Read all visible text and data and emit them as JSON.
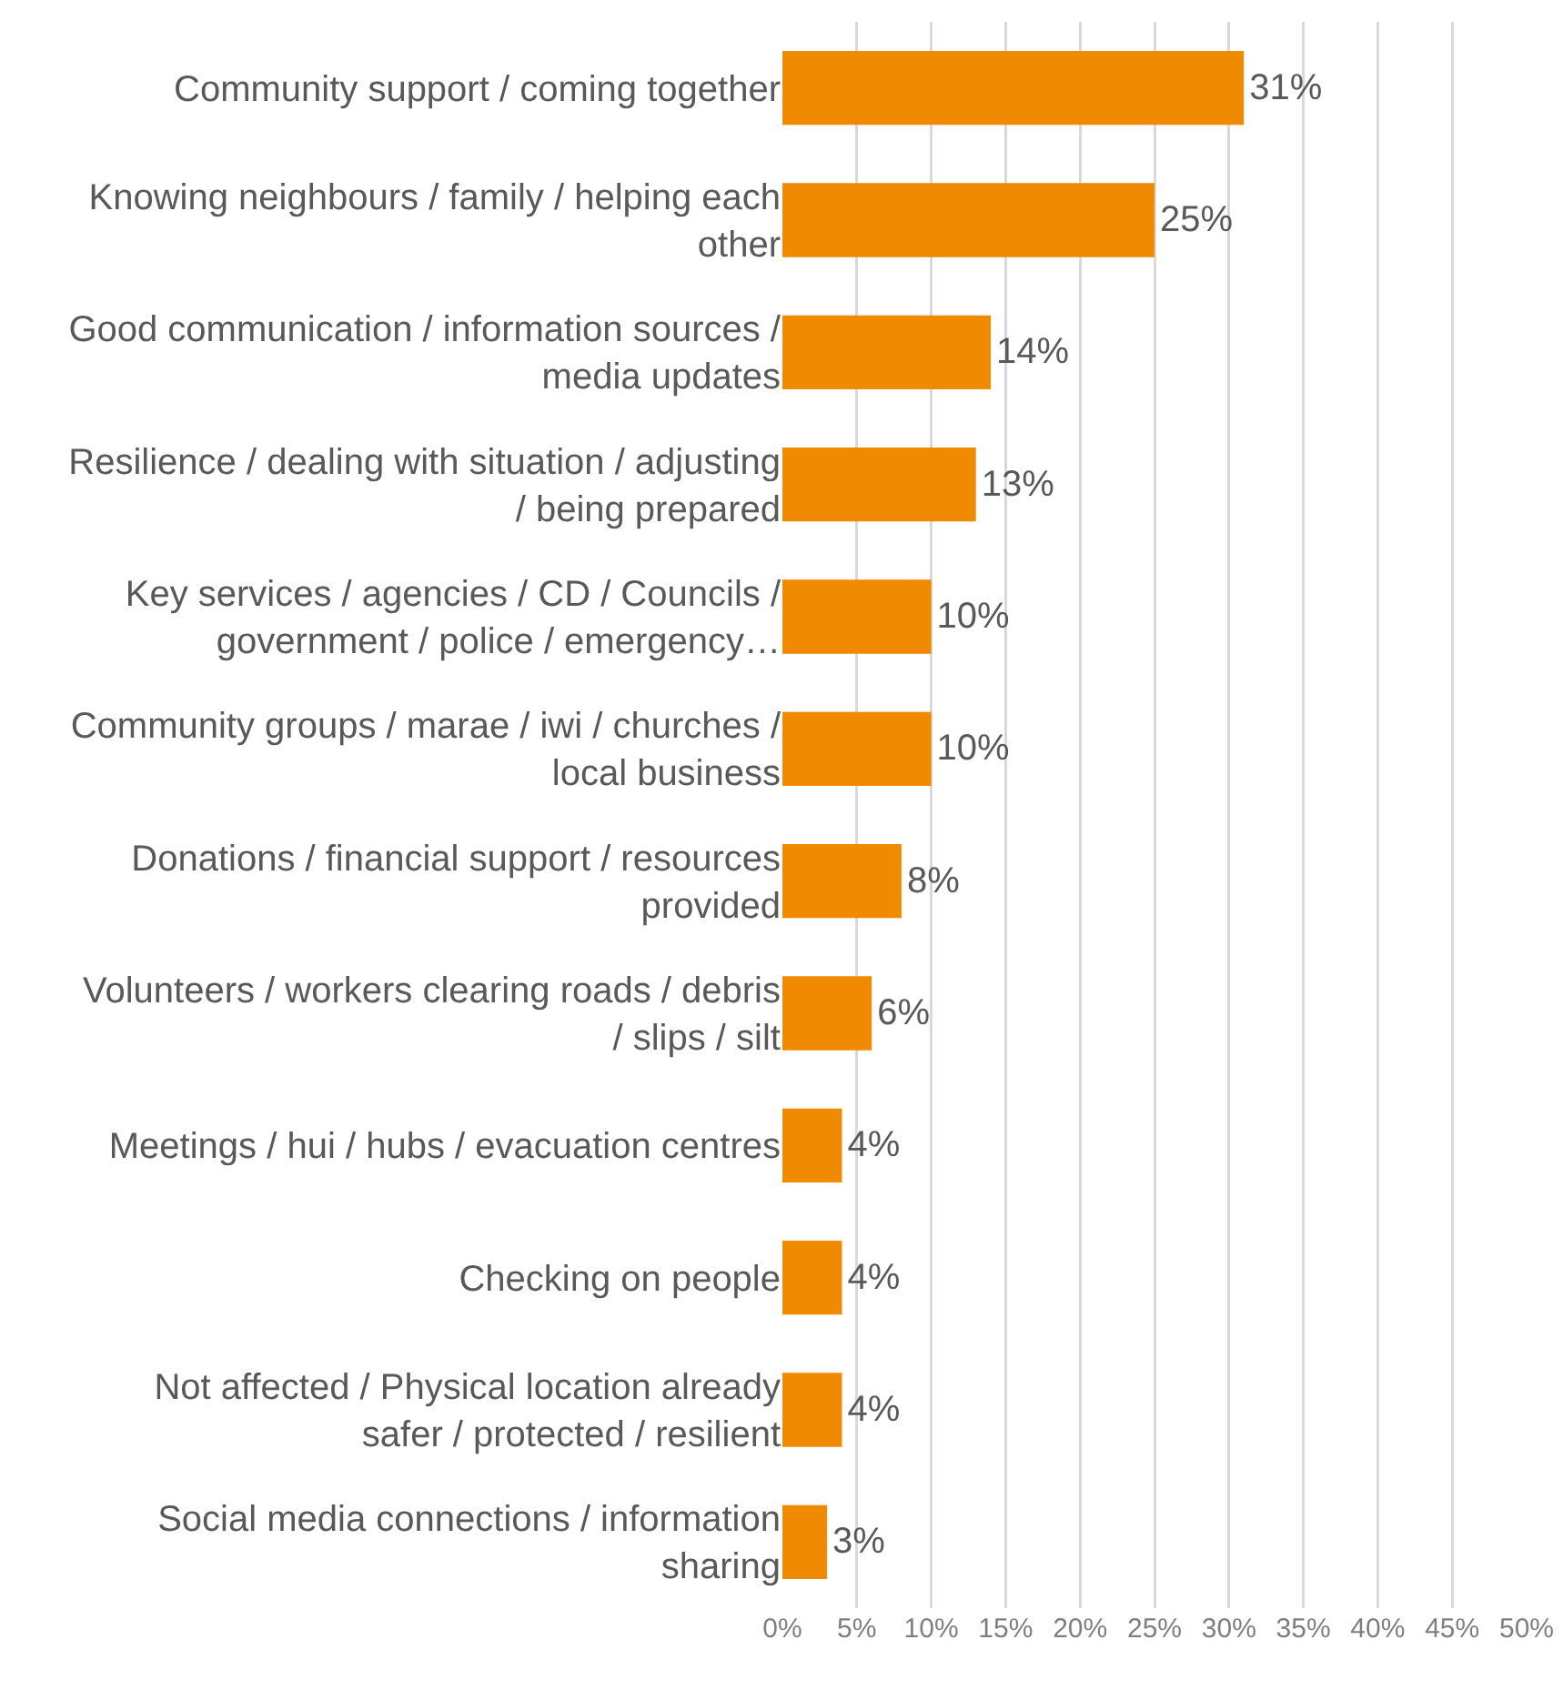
{
  "chart_data": {
    "type": "bar",
    "orientation": "horizontal",
    "categories": [
      "Community support / coming together",
      "Knowing neighbours / family / helping each other",
      "Good communication / information sources / media updates",
      "Resilience / dealing with situation / adjusting / being prepared",
      "Key services / agencies / CD / Councils / government / police / emergency…",
      "Community groups / marae / iwi / churches / local business",
      "Donations / financial support / resources provided",
      "Volunteers / workers clearing roads / debris / slips / silt",
      "Meetings / hui / hubs / evacuation centres",
      "Checking on people",
      "Not affected / Physical location already safer / protected / resilient",
      "Social media connections / information sharing"
    ],
    "values": [
      31,
      25,
      14,
      13,
      10,
      10,
      8,
      6,
      4,
      4,
      4,
      3
    ],
    "value_labels": [
      "31%",
      "25%",
      "14%",
      "13%",
      "10%",
      "10%",
      "8%",
      "6%",
      "4%",
      "4%",
      "4%",
      "3%"
    ],
    "color": "#f08a00",
    "xlim": [
      0,
      50
    ],
    "xticks": [
      {
        "value": 0,
        "label": "0%"
      },
      {
        "value": 5,
        "label": "5%"
      },
      {
        "value": 10,
        "label": "10%"
      },
      {
        "value": 15,
        "label": "15%"
      },
      {
        "value": 20,
        "label": "20%"
      },
      {
        "value": 25,
        "label": "25%"
      },
      {
        "value": 30,
        "label": "30%"
      },
      {
        "value": 35,
        "label": "35%"
      },
      {
        "value": 40,
        "label": "40%"
      },
      {
        "value": 45,
        "label": "45%"
      },
      {
        "value": 50,
        "label": "50%"
      }
    ],
    "grid": "x",
    "legend": false
  }
}
